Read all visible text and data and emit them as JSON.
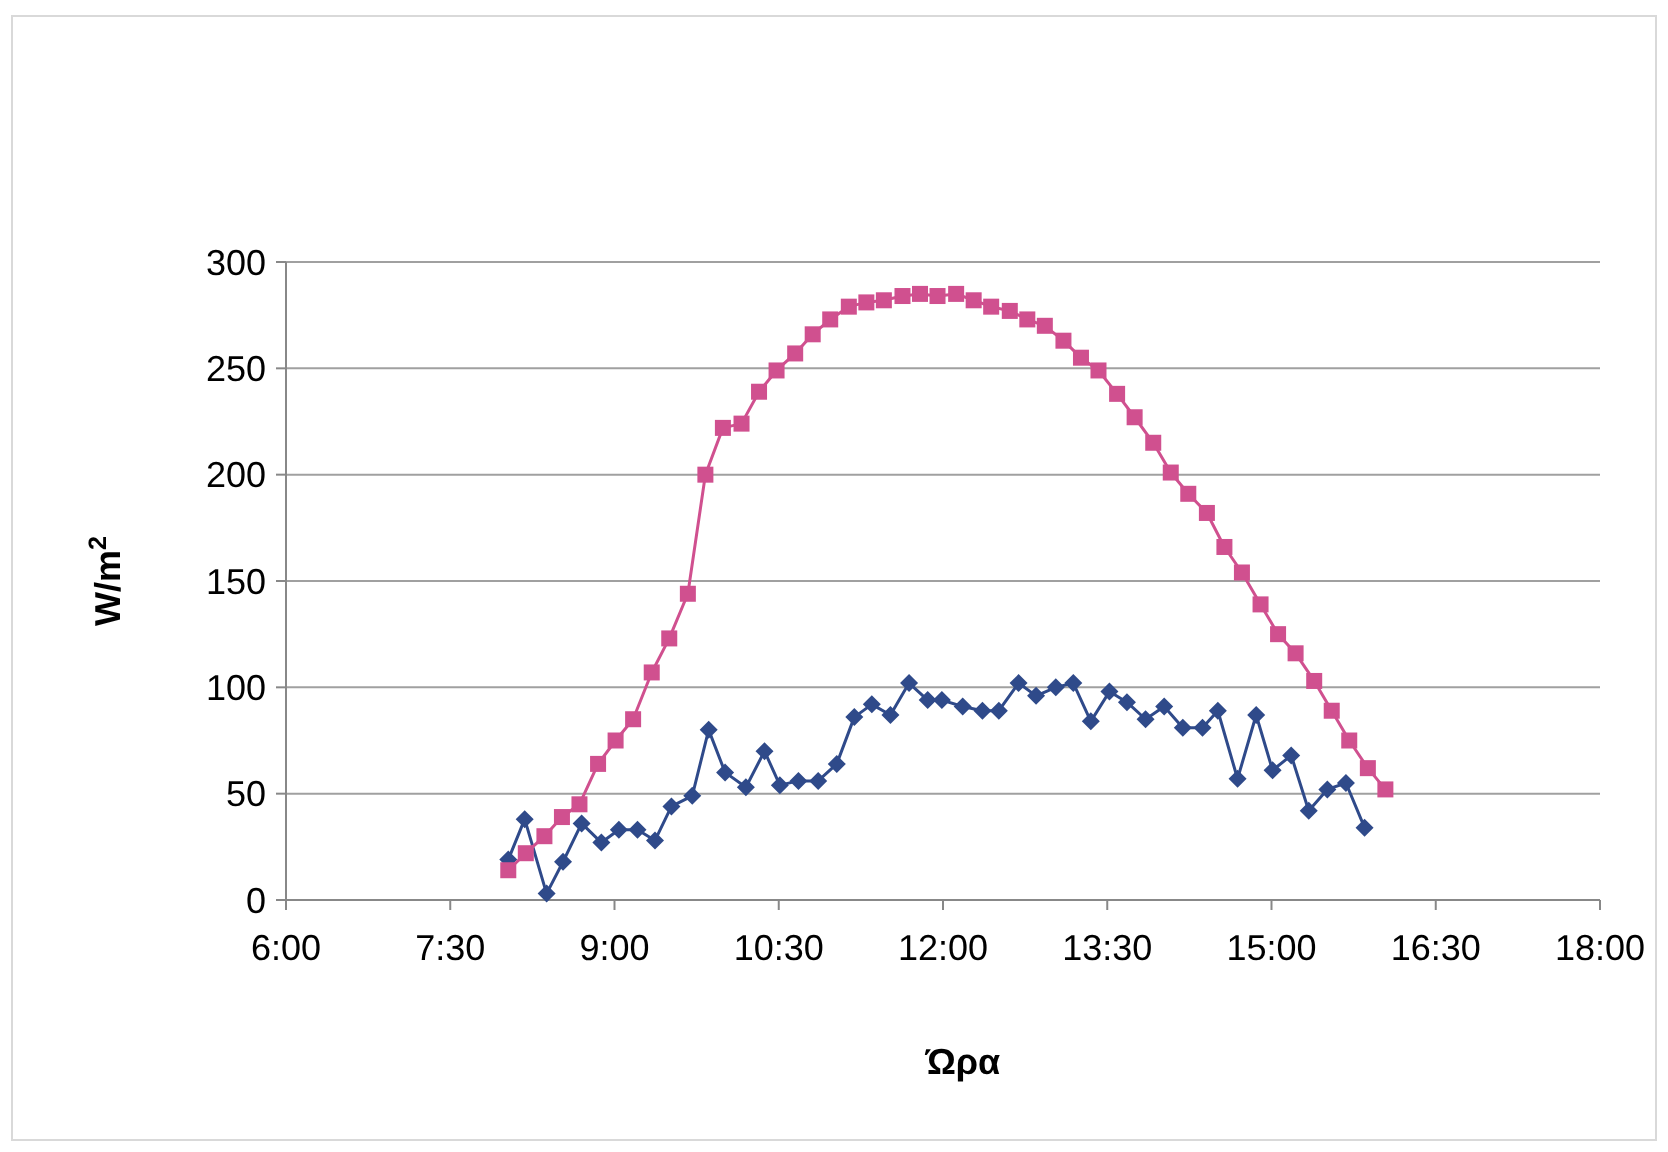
{
  "chart_data": {
    "type": "line",
    "xlabel": "Ώρα",
    "ylabel": "W/m$^{2}$",
    "xlim": [
      6,
      18
    ],
    "xticks": [
      {
        "value": 6,
        "label": "6:00"
      },
      {
        "value": 7.5,
        "label": "7:30"
      },
      {
        "value": 9,
        "label": "9:00"
      },
      {
        "value": 10.5,
        "label": "10:30"
      },
      {
        "value": 12,
        "label": "12:00"
      },
      {
        "value": 13.5,
        "label": "13:30"
      },
      {
        "value": 15,
        "label": "15:00"
      },
      {
        "value": 16.5,
        "label": "16:30"
      },
      {
        "value": 18,
        "label": "18:00"
      }
    ],
    "ylim": [
      0,
      300
    ],
    "yticks": [
      0,
      50,
      100,
      150,
      200,
      250,
      300
    ],
    "grid": "y",
    "series": [
      {
        "color": "#2f4a8a",
        "marker": "diamond",
        "x": [
          8.03,
          8.18,
          8.38,
          8.53,
          8.7,
          8.88,
          9.04,
          9.21,
          9.37,
          9.52,
          9.71,
          9.86,
          10.01,
          10.2,
          10.37,
          10.51,
          10.68,
          10.86,
          11.03,
          11.19,
          11.35,
          11.52,
          11.69,
          11.86,
          11.99,
          12.18,
          12.36,
          12.51,
          12.69,
          12.85,
          13.03,
          13.19,
          13.35,
          13.52,
          13.68,
          13.85,
          14.02,
          14.19,
          14.37,
          14.51,
          14.69,
          14.86,
          15.01,
          15.18,
          15.34,
          15.51,
          15.68,
          15.85
        ],
        "values": [
          19,
          38,
          3,
          18,
          36,
          27,
          33,
          33,
          28,
          44,
          49,
          80,
          60,
          53,
          70,
          54,
          56,
          56,
          64,
          86,
          92,
          87,
          102,
          94,
          94,
          91,
          89,
          89,
          102,
          96,
          100,
          102,
          84,
          98,
          93,
          85,
          91,
          81,
          81,
          89,
          57,
          87,
          61,
          68,
          42,
          52,
          55,
          34
        ]
      },
      {
        "color": "#d0508f",
        "marker": "square",
        "x": [
          8.03,
          8.19,
          8.36,
          8.52,
          8.68,
          8.85,
          9.01,
          9.17,
          9.34,
          9.5,
          9.67,
          9.83,
          9.99,
          10.16,
          10.32,
          10.48,
          10.65,
          10.81,
          10.97,
          11.14,
          11.3,
          11.46,
          11.63,
          11.79,
          11.95,
          12.12,
          12.28,
          12.44,
          12.61,
          12.77,
          12.93,
          13.1,
          13.26,
          13.42,
          13.59,
          13.75,
          13.92,
          14.08,
          14.24,
          14.41,
          14.57,
          14.73,
          14.9,
          15.06,
          15.22,
          15.39,
          15.55,
          15.71,
          15.88,
          16.04
        ],
        "values": [
          14,
          22,
          30,
          39,
          45,
          64,
          75,
          85,
          107,
          123,
          144,
          200,
          222,
          224,
          239,
          249,
          257,
          266,
          273,
          279,
          281,
          282,
          284,
          285,
          284,
          285,
          282,
          279,
          277,
          273,
          270,
          263,
          255,
          249,
          238,
          227,
          215,
          201,
          191,
          182,
          166,
          154,
          139,
          125,
          116,
          103,
          89,
          75,
          62,
          52
        ]
      }
    ]
  }
}
